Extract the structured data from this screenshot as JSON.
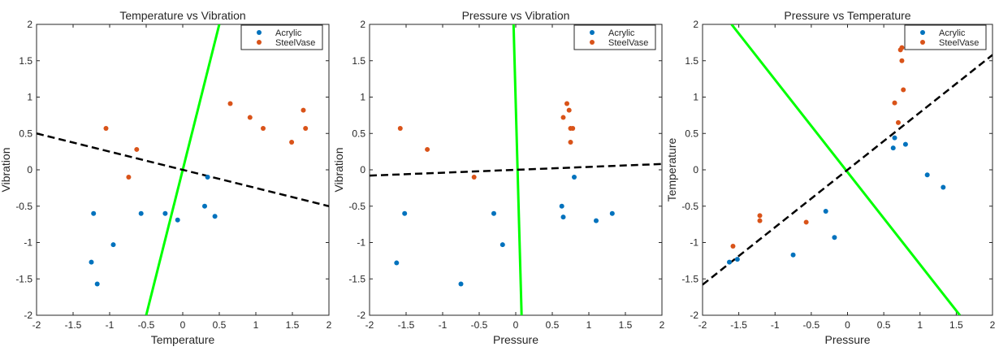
{
  "chart_data": [
    {
      "type": "scatter",
      "title": "Temperature vs Vibration",
      "xlabel": "Temperature",
      "ylabel": "Vibration",
      "xlim": [
        -2,
        2
      ],
      "ylim": [
        -2,
        2
      ],
      "xticks": [
        -2,
        -1.5,
        -1,
        -0.5,
        0,
        0.5,
        1,
        1.5,
        2
      ],
      "xtick_labels": [
        "-2",
        "-1.5",
        "-1",
        "-0.5",
        "0",
        "0.5",
        "1",
        "1.5",
        "2"
      ],
      "yticks": [
        -2,
        -1.5,
        -1,
        -0.5,
        0,
        0.5,
        1,
        1.5,
        2
      ],
      "ytick_labels": [
        "-2",
        "-1.5",
        "-1",
        "-0.5",
        "0",
        "0.5",
        "1",
        "1.5",
        "2"
      ],
      "grid": false,
      "legend": "top-right",
      "series": [
        {
          "name": "Acrylic",
          "color": "#0072BD",
          "points": [
            [
              -1.22,
              -0.6
            ],
            [
              -1.25,
              -1.27
            ],
            [
              -1.17,
              -1.57
            ],
            [
              -0.95,
              -1.03
            ],
            [
              -0.57,
              -0.6
            ],
            [
              -0.24,
              -0.6
            ],
            [
              -0.07,
              -0.69
            ],
            [
              0.3,
              -0.5
            ],
            [
              0.34,
              -0.1
            ],
            [
              0.44,
              -0.64
            ]
          ]
        },
        {
          "name": "SteelVase",
          "color": "#D95319",
          "points": [
            [
              -1.05,
              0.57
            ],
            [
              -0.63,
              0.28
            ],
            [
              -0.74,
              -0.1
            ],
            [
              0.65,
              0.91
            ],
            [
              0.92,
              0.72
            ],
            [
              1.1,
              0.57
            ],
            [
              1.49,
              0.38
            ],
            [
              1.65,
              0.82
            ],
            [
              1.68,
              0.57
            ]
          ]
        }
      ],
      "lines": [
        {
          "color": "#00FF00",
          "style": "solid",
          "from": [
            -0.5,
            -2
          ],
          "to": [
            0.5,
            2
          ]
        },
        {
          "color": "#000000",
          "style": "dashed",
          "from": [
            -2,
            0.5
          ],
          "to": [
            2,
            -0.5
          ]
        }
      ]
    },
    {
      "type": "scatter",
      "title": "Pressure vs Vibration",
      "xlabel": "Pressure",
      "ylabel": "Vibration",
      "xlim": [
        -2,
        2
      ],
      "ylim": [
        -2,
        2
      ],
      "xticks": [
        -2,
        -1.5,
        -1,
        -0.5,
        0,
        0.5,
        1,
        1.5,
        2
      ],
      "xtick_labels": [
        "-2",
        "-1.5",
        "-1",
        "-0.5",
        "0",
        "0.5",
        "1",
        "1.5",
        "2"
      ],
      "yticks": [
        -2,
        -1.5,
        -1,
        -0.5,
        0,
        0.5,
        1,
        1.5,
        2
      ],
      "ytick_labels": [
        "-2",
        "-1.5",
        "-1",
        "-0.5",
        "0",
        "0.5",
        "1",
        "1.5",
        "2"
      ],
      "grid": false,
      "legend": "top-right",
      "series": [
        {
          "name": "Acrylic",
          "color": "#0072BD",
          "points": [
            [
              -1.63,
              -1.28
            ],
            [
              -1.52,
              -0.6
            ],
            [
              -0.75,
              -1.57
            ],
            [
              -0.3,
              -0.6
            ],
            [
              -0.18,
              -1.03
            ],
            [
              0.63,
              -0.5
            ],
            [
              0.65,
              -0.65
            ],
            [
              0.8,
              -0.1
            ],
            [
              1.1,
              -0.7
            ],
            [
              1.32,
              -0.6
            ]
          ]
        },
        {
          "name": "SteelVase",
          "color": "#D95319",
          "points": [
            [
              -1.58,
              0.57
            ],
            [
              -1.21,
              0.28
            ],
            [
              -0.57,
              -0.1
            ],
            [
              0.65,
              0.72
            ],
            [
              0.7,
              0.91
            ],
            [
              0.73,
              0.82
            ],
            [
              0.75,
              0.57
            ],
            [
              0.78,
              0.57
            ],
            [
              0.75,
              0.38
            ]
          ]
        }
      ],
      "lines": [
        {
          "color": "#00FF00",
          "style": "solid",
          "from": [
            -0.03,
            2
          ],
          "to": [
            0.08,
            -2
          ]
        },
        {
          "color": "#000000",
          "style": "dashed",
          "from": [
            -2,
            -0.08
          ],
          "to": [
            2,
            0.08
          ]
        }
      ]
    },
    {
      "type": "scatter",
      "title": "Pressure vs Temperature",
      "xlabel": "Pressure",
      "ylabel": "Temperature",
      "xlim": [
        -2,
        2
      ],
      "ylim": [
        -2,
        2
      ],
      "xticks": [
        -2,
        -1.5,
        -1,
        -0.5,
        0,
        0.5,
        1,
        1.5,
        2
      ],
      "xtick_labels": [
        "-2",
        "-1.5",
        "-1",
        "-0.5",
        "0",
        "0.5",
        "1",
        "1.5",
        "2"
      ],
      "yticks": [
        -2,
        -1.5,
        -1,
        -0.5,
        0,
        0.5,
        1,
        1.5,
        2
      ],
      "ytick_labels": [
        "-2",
        "-1.5",
        "-1",
        "-0.5",
        "0",
        "0.5",
        "1",
        "1.5",
        "2"
      ],
      "grid": false,
      "legend": "top-right",
      "series": [
        {
          "name": "Acrylic",
          "color": "#0072BD",
          "points": [
            [
              -1.63,
              -1.27
            ],
            [
              -1.52,
              -1.23
            ],
            [
              -0.75,
              -1.17
            ],
            [
              -0.3,
              -0.57
            ],
            [
              -0.18,
              -0.93
            ],
            [
              0.63,
              0.3
            ],
            [
              0.65,
              0.44
            ],
            [
              0.8,
              0.35
            ],
            [
              1.1,
              -0.07
            ],
            [
              1.32,
              -0.24
            ]
          ]
        },
        {
          "name": "SteelVase",
          "color": "#D95319",
          "points": [
            [
              -1.58,
              -1.05
            ],
            [
              -1.21,
              -0.63
            ],
            [
              -1.21,
              -0.7
            ],
            [
              -0.57,
              -0.72
            ],
            [
              0.65,
              0.92
            ],
            [
              0.7,
              0.65
            ],
            [
              0.73,
              1.65
            ],
            [
              0.75,
              1.68
            ],
            [
              0.75,
              1.5
            ],
            [
              0.77,
              1.1
            ]
          ]
        }
      ],
      "lines": [
        {
          "color": "#00FF00",
          "style": "solid",
          "from": [
            -1.6,
            2
          ],
          "to": [
            1.55,
            -2
          ]
        },
        {
          "color": "#000000",
          "style": "dashed",
          "from": [
            -2,
            -1.58
          ],
          "to": [
            2,
            1.58
          ]
        }
      ]
    }
  ]
}
